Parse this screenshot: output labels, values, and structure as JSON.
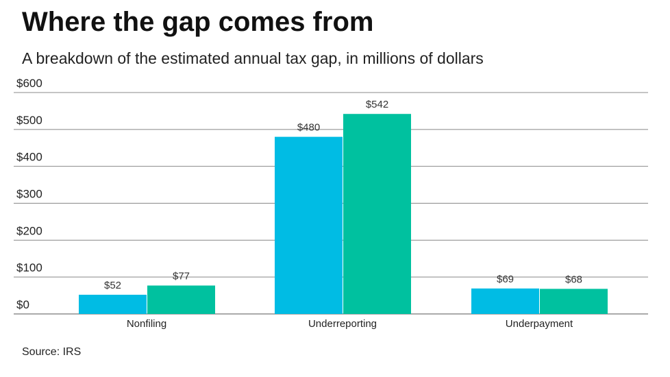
{
  "title": "Where the gap comes from",
  "subtitle": "A breakdown of the estimated annual tax gap, in millions of dollars",
  "source": "Source: IRS",
  "chart_data": {
    "type": "bar",
    "categories": [
      "Nonfiling",
      "Underreporting",
      "Underpayment"
    ],
    "series": [
      {
        "values": [
          52,
          480,
          69
        ],
        "color": "#00bce4"
      },
      {
        "values": [
          77,
          542,
          68
        ],
        "color": "#00c19f"
      }
    ],
    "ylim": [
      0,
      600
    ],
    "yticks": [
      0,
      100,
      200,
      300,
      400,
      500,
      600
    ],
    "ytick_labels": [
      "$0",
      "$100",
      "$200",
      "$300",
      "$400",
      "$500",
      "$600"
    ],
    "data_label_prefix": "$",
    "grid": true
  }
}
